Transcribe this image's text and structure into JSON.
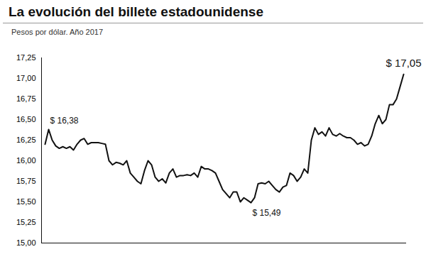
{
  "chart_data": {
    "type": "line",
    "title": "La evolución del billete estadounidense",
    "subtitle": "Pesos por dólar. Año 2017",
    "categories": [
      null,
      null,
      null,
      null,
      null,
      null,
      null,
      null,
      null,
      null,
      null,
      null,
      null,
      null,
      null,
      null,
      null,
      null,
      null,
      null,
      null,
      null,
      null,
      null,
      null,
      null,
      null,
      null,
      null,
      null,
      null,
      null,
      null,
      null,
      null,
      null,
      null,
      null,
      null,
      null,
      null,
      null,
      null,
      null,
      null,
      null,
      null,
      null,
      null,
      null,
      null,
      null,
      null,
      null,
      null,
      null,
      null,
      null,
      null,
      null,
      null,
      null,
      null,
      null,
      null,
      null,
      null,
      null,
      null,
      null,
      null,
      null,
      null,
      null,
      null,
      null,
      null,
      null,
      null,
      null,
      null,
      null,
      null,
      null,
      null,
      null,
      null,
      null,
      null,
      null,
      null,
      null,
      null,
      null,
      null,
      null,
      null,
      null,
      null,
      null,
      null,
      null
    ],
    "values": [
      16.2,
      16.38,
      16.25,
      16.18,
      16.15,
      16.17,
      16.15,
      16.17,
      16.13,
      16.2,
      16.25,
      16.27,
      16.2,
      16.22,
      16.22,
      16.22,
      16.21,
      16.2,
      16.0,
      15.95,
      15.98,
      15.97,
      15.95,
      16.0,
      15.85,
      15.8,
      15.75,
      15.72,
      15.88,
      16.0,
      15.95,
      15.8,
      15.75,
      15.78,
      15.73,
      15.85,
      15.9,
      15.8,
      15.82,
      15.82,
      15.83,
      15.82,
      15.85,
      15.8,
      15.93,
      15.9,
      15.9,
      15.88,
      15.85,
      15.75,
      15.65,
      15.6,
      15.55,
      15.62,
      15.62,
      15.5,
      15.55,
      15.52,
      15.49,
      15.55,
      15.72,
      15.73,
      15.72,
      15.75,
      15.7,
      15.65,
      15.62,
      15.68,
      15.7,
      15.85,
      15.82,
      15.75,
      15.8,
      15.9,
      15.85,
      16.25,
      16.4,
      16.32,
      16.35,
      16.3,
      16.4,
      16.32,
      16.3,
      16.33,
      16.3,
      16.28,
      16.28,
      16.25,
      16.2,
      16.22,
      16.18,
      16.2,
      16.3,
      16.45,
      16.55,
      16.45,
      16.5,
      16.68,
      16.68,
      16.75,
      16.9,
      17.05
    ],
    "color": "#111111",
    "ylim": [
      15,
      17.25
    ],
    "yticks": [
      {
        "value": 15,
        "label": "15,00"
      },
      {
        "value": 15.25,
        "label": "15,25"
      },
      {
        "value": 15.5,
        "label": "15,50"
      },
      {
        "value": 15.75,
        "label": "15,75"
      },
      {
        "value": 16,
        "label": "16,00"
      },
      {
        "value": 16.25,
        "label": "16,25"
      },
      {
        "value": 16.5,
        "label": "16,50"
      },
      {
        "value": 16.75,
        "label": "16,75"
      },
      {
        "value": 17,
        "label": "17,00"
      },
      {
        "value": 17.25,
        "label": "17,25"
      }
    ],
    "grid": false,
    "tick_labels": "y",
    "annotations": [
      {
        "label": "$ 16,38",
        "value": 16.38
      },
      {
        "label": "$ 15,49",
        "value": 15.49
      },
      {
        "label": "$ 17,05",
        "value": 17.05
      }
    ]
  }
}
